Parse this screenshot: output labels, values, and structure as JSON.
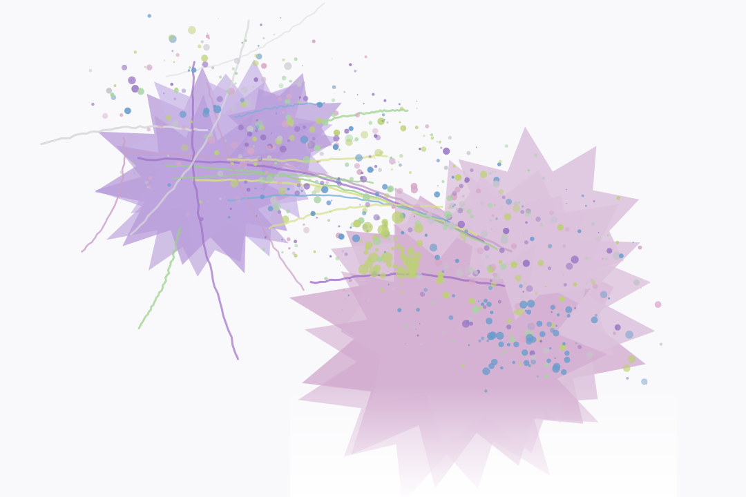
{
  "artwork": {
    "description_visible_text": "",
    "colors": {
      "background": "#f9f9fb",
      "violet_shape": "#b69ad8",
      "violet_shape_light": "#c8b4e6",
      "pink_shape": "#dcc2dc",
      "pink_shape_dark": "#cfa6cc",
      "fade": "#ffffff",
      "line_violet": "#a070c8",
      "line_pink": "#c8a0c8",
      "line_green": "#98d088",
      "line_yellow": "#d8e088",
      "line_blue": "#78b0d8",
      "line_grey": "#d8d8dc",
      "dot_blue": "#6a9ccc",
      "dot_lime": "#bcd074",
      "dot_mint": "#a8d4a4",
      "dot_purple": "#9a78c4",
      "dot_pink": "#d6a8c8",
      "dot_grey": "#c4c4cc"
    }
  }
}
